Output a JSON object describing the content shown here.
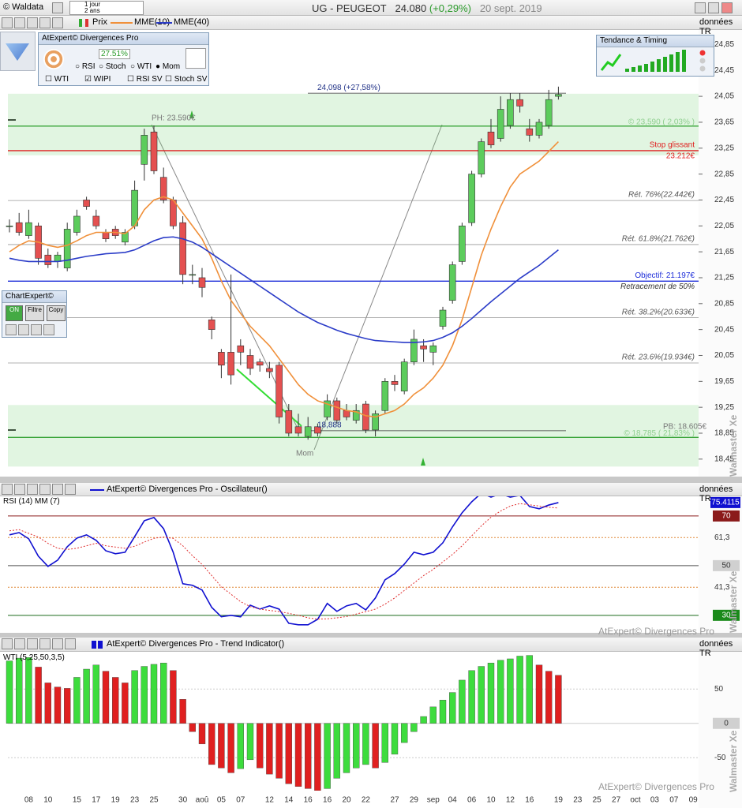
{
  "window": {
    "app": "© Waldata",
    "period": "1 jour",
    "range": "2 ans",
    "symbol": "UG - PEUGEOT",
    "last": "24.080",
    "change": "(+0,29%)",
    "date": "20 sept. 2019"
  },
  "toolbar": {
    "price": "Prix",
    "source": "données TR"
  },
  "divergences_box": {
    "title": "AtExpert© Divergences Pro",
    "score": "27.51%",
    "options": [
      "RSI",
      "Stoch",
      "WTI",
      "Mom"
    ],
    "filters": [
      "WTI",
      "WIPI",
      "RSI SV",
      "Stoch SV"
    ]
  },
  "timing_box": {
    "title": "Tendance & Timing"
  },
  "chartexpert_box": {
    "title": "ChartExpert©",
    "buttons": [
      "ON",
      "Filtre",
      "Copy"
    ]
  },
  "panels": [
    {
      "title": "AtExpert© Divergences Pro - Oscillateur()"
    },
    {
      "title": "AtExpert© Divergences Pro - Trend Indicator()"
    }
  ],
  "watermarks": {
    "vertical": "Walmaster Xe",
    "brand": "AtExpert© Divergences Pro"
  },
  "chart_data": [
    {
      "type": "candlestick",
      "open": [
        22.05,
        22.1,
        21.9,
        22.05,
        21.6,
        21.5,
        21.4,
        21.95,
        22.45,
        22.2,
        21.95,
        22.0,
        21.8,
        22.05,
        23.0,
        23.5,
        22.8,
        22.45,
        22.1,
        21.3,
        21.25,
        20.6,
        20.1,
        20.1,
        20.2,
        20.05,
        19.95,
        19.85,
        19.9,
        19.2,
        18.95,
        18.8,
        18.95,
        19.1,
        19.35,
        19.2,
        19.05,
        19.3,
        18.9,
        19.2,
        19.65,
        19.5,
        19.95,
        20.2,
        20.1,
        20.5,
        20.9,
        21.5,
        22.1,
        22.85,
        23.5,
        23.4,
        23.6,
        24.0,
        23.55,
        23.45,
        23.6,
        24.05,
        null,
        null,
        null,
        null,
        null,
        null,
        null,
        null,
        null,
        null,
        null,
        null,
        null,
        null
      ],
      "high": [
        22.15,
        22.25,
        22.3,
        22.1,
        21.7,
        21.65,
        22.1,
        22.3,
        22.5,
        22.3,
        22.0,
        22.05,
        22.0,
        22.75,
        23.55,
        23.6,
        22.95,
        22.5,
        22.2,
        21.45,
        21.4,
        20.65,
        20.15,
        21.3,
        20.3,
        20.15,
        20.0,
        19.95,
        19.95,
        19.3,
        19.15,
        19.1,
        19.0,
        19.45,
        19.4,
        19.3,
        19.3,
        19.35,
        19.2,
        19.7,
        19.75,
        20.0,
        20.45,
        20.3,
        20.25,
        20.8,
        21.5,
        22.1,
        22.9,
        23.4,
        23.7,
        24.05,
        24.1,
        24.1,
        23.7,
        23.7,
        24.15,
        24.2,
        null,
        null,
        null,
        null,
        null,
        null,
        null,
        null,
        null,
        null,
        null,
        null,
        null,
        null
      ],
      "low": [
        21.95,
        21.9,
        21.85,
        21.45,
        21.4,
        21.4,
        21.35,
        21.9,
        22.3,
        22.0,
        21.8,
        21.85,
        21.75,
        22.0,
        22.75,
        22.85,
        22.4,
        22.0,
        21.15,
        21.15,
        20.95,
        20.3,
        19.7,
        19.6,
        19.9,
        19.75,
        19.8,
        19.7,
        19.0,
        18.8,
        18.8,
        18.75,
        18.8,
        19.05,
        19.0,
        19.05,
        19.0,
        18.85,
        18.8,
        19.15,
        19.5,
        19.45,
        19.9,
        19.95,
        19.9,
        20.45,
        20.85,
        21.45,
        22.05,
        22.8,
        23.25,
        23.35,
        23.55,
        23.8,
        23.35,
        23.4,
        23.55,
        24.0,
        null,
        null,
        null,
        null,
        null,
        null,
        null,
        null,
        null,
        null,
        null,
        null,
        null,
        null
      ],
      "close": [
        22.05,
        21.95,
        22.1,
        21.55,
        21.45,
        21.6,
        22.0,
        22.2,
        22.35,
        22.05,
        21.85,
        21.9,
        21.95,
        22.6,
        23.45,
        22.9,
        22.45,
        22.05,
        21.3,
        21.3,
        21.1,
        20.45,
        19.9,
        19.75,
        20.1,
        19.85,
        19.9,
        19.8,
        19.1,
        18.85,
        18.85,
        18.95,
        18.85,
        19.35,
        19.05,
        19.1,
        19.2,
        18.9,
        19.15,
        19.65,
        19.6,
        19.95,
        20.3,
        20.15,
        20.2,
        20.75,
        21.45,
        22.05,
        22.85,
        23.35,
        23.3,
        23.85,
        24.0,
        23.9,
        23.45,
        23.65,
        24.0,
        24.08,
        null,
        null,
        null,
        null,
        null,
        null,
        null,
        null,
        null,
        null,
        null,
        null,
        null,
        null
      ],
      "up_color": "#5ccc5c",
      "down_color": "#e45050",
      "series": [
        {
          "name": "MME(10)",
          "color": "#f0903a",
          "values": [
            21.65,
            21.75,
            21.82,
            21.8,
            21.75,
            21.72,
            21.75,
            21.82,
            21.9,
            21.95,
            21.95,
            21.95,
            21.93,
            22.05,
            22.3,
            22.45,
            22.5,
            22.45,
            22.25,
            22.05,
            21.85,
            21.55,
            21.2,
            20.9,
            20.7,
            20.5,
            20.35,
            20.2,
            20.0,
            19.8,
            19.6,
            19.45,
            19.35,
            19.3,
            19.25,
            19.2,
            19.18,
            19.12,
            19.1,
            19.15,
            19.2,
            19.3,
            19.45,
            19.55,
            19.7,
            19.9,
            20.2,
            20.6,
            21.1,
            21.6,
            22.0,
            22.35,
            22.65,
            22.85,
            22.95,
            23.05,
            23.2,
            23.35,
            null,
            null,
            null,
            null,
            null,
            null,
            null,
            null,
            null,
            null,
            null,
            null,
            null,
            null
          ]
        },
        {
          "name": "MME(40)",
          "color": "#2b3cc8",
          "values": [
            21.55,
            21.52,
            21.5,
            21.5,
            21.5,
            21.5,
            21.52,
            21.55,
            21.58,
            21.6,
            21.62,
            21.63,
            21.64,
            21.68,
            21.75,
            21.82,
            21.87,
            21.88,
            21.85,
            21.8,
            21.72,
            21.62,
            21.52,
            21.42,
            21.32,
            21.22,
            21.12,
            21.02,
            20.92,
            20.82,
            20.72,
            20.64,
            20.56,
            20.5,
            20.44,
            20.39,
            20.35,
            20.31,
            20.28,
            20.27,
            20.26,
            20.25,
            20.25,
            20.26,
            20.28,
            20.33,
            20.4,
            20.5,
            20.62,
            20.75,
            20.88,
            21.0,
            21.12,
            21.24,
            21.34,
            21.44,
            21.56,
            21.68,
            null,
            null,
            null,
            null,
            null,
            null,
            null,
            null,
            null,
            null,
            null,
            null,
            null,
            null
          ]
        }
      ],
      "ylim": [
        18.18,
        25.05
      ],
      "yticks": [
        {
          "value": 24.85,
          "label": "24,85"
        },
        {
          "value": 24.45,
          "label": "24,45"
        },
        {
          "value": 24.05,
          "label": "24,05"
        },
        {
          "value": 23.65,
          "label": "23,65"
        },
        {
          "value": 23.25,
          "label": "23,25"
        },
        {
          "value": 22.85,
          "label": "22,85"
        },
        {
          "value": 22.45,
          "label": "22,45"
        },
        {
          "value": 22.05,
          "label": "22,05"
        },
        {
          "value": 21.65,
          "label": "21,65"
        },
        {
          "value": 21.25,
          "label": "21,25"
        },
        {
          "value": 20.85,
          "label": "20,85"
        },
        {
          "value": 20.45,
          "label": "20,45"
        },
        {
          "value": 20.05,
          "label": "20,05"
        },
        {
          "value": 19.65,
          "label": "19,65"
        },
        {
          "value": 19.25,
          "label": "19,25"
        },
        {
          "value": 18.85,
          "label": "18,85"
        },
        {
          "value": 18.45,
          "label": "18,45"
        }
      ],
      "levels": [
        {
          "value": 23.59,
          "label": "© 23,590 ( 2,03% )",
          "color": "#3aa53a",
          "band": true
        },
        {
          "value": 23.212,
          "label": "Stop glissant",
          "sublabel": "23.212€",
          "color": "#e02020"
        },
        {
          "value": 22.442,
          "label": "Rét. 76%(22.442€)",
          "color": "#999999"
        },
        {
          "value": 21.762,
          "label": "Rét. 61.8%(21.762€)",
          "color": "#999999"
        },
        {
          "value": 21.197,
          "label": "Objectif: 21.197€",
          "sublabel": "Retracement de 50%",
          "color": "#1a2ad8"
        },
        {
          "value": 20.633,
          "label": "Rét. 38.2%(20.633€)",
          "color": "#999999"
        },
        {
          "value": 19.934,
          "label": "Rét. 23.6%(19.934€)",
          "color": "#999999"
        },
        {
          "value": 18.785,
          "label": "© 18,785 ( 21,83% )",
          "color": "#3aa53a",
          "band": true
        }
      ],
      "markers": [
        {
          "value": 24.098,
          "label": "24,098 (+27,58%)"
        },
        {
          "value": 18.888,
          "label": "18,888"
        }
      ],
      "annotations": [
        "PH: 23.590€",
        "PB: 18.605€",
        "Mom"
      ]
    },
    {
      "type": "line",
      "legend": "RSI (14) MM (7)",
      "series": [
        {
          "color": "#1010d0",
          "values": [
            62.4,
            63.3,
            60.8,
            53.8,
            49.7,
            52.2,
            57.6,
            61.1,
            62.4,
            60.2,
            56.0,
            54.8,
            55.4,
            61.7,
            68.1,
            69.4,
            64.9,
            55.4,
            42.7,
            42.1,
            40.2,
            33.2,
            29.4,
            30,
            29.4,
            34.1,
            32.5,
            33.8,
            32.5,
            26.8,
            26.2,
            26.2,
            28.4,
            34.8,
            31.6,
            33.8,
            34.8,
            32.2,
            37.0,
            44.3,
            46.8,
            50.6,
            55.4,
            54.4,
            55.4,
            59.2,
            65.6,
            71.3,
            75.7,
            79.2,
            77.6,
            78.9,
            77.6,
            78.3,
            73.8,
            72.9,
            74.4,
            75.4,
            null,
            null,
            null,
            null,
            null,
            null,
            null,
            null,
            null,
            null,
            null,
            null,
            null,
            null
          ]
        },
        {
          "color": "#e03030",
          "dash": true,
          "values": [
            64,
            64.5,
            63,
            61.5,
            59,
            57,
            56.5,
            57,
            58,
            59,
            58,
            57.5,
            57,
            57.8,
            59.5,
            61,
            61.5,
            61,
            58,
            54,
            50.5,
            46,
            41.5,
            38.5,
            35.5,
            33.5,
            32.5,
            32,
            31.5,
            30.8,
            30,
            29,
            28.5,
            28.6,
            29,
            29.5,
            30.5,
            31.5,
            32.5,
            34.5,
            37,
            40,
            43,
            46,
            48.5,
            51.5,
            54.5,
            58,
            62,
            66,
            69.5,
            72,
            74,
            75,
            74.5,
            74,
            73.5,
            73.2,
            null,
            null,
            null,
            null,
            null,
            null,
            null,
            null,
            null,
            null,
            null,
            null,
            null,
            null
          ]
        }
      ],
      "ylim": [
        22,
        77.6
      ],
      "yticks": [
        70,
        {
          "value": 61.3,
          "label": "61,3"
        },
        50,
        {
          "value": 41.3,
          "label": "41,3"
        },
        30
      ],
      "tick_colors": [
        "#8b1a1a",
        "#e08a3a",
        "#555555",
        "#e08a3a",
        "#1a6a1a"
      ],
      "tick_boxes": [
        "#8b1a1a",
        null,
        "#d0d0d0",
        null,
        "#1a8a1a"
      ],
      "last_value": 75.4115,
      "last_color": "#1010d0"
    },
    {
      "type": "bar",
      "legend": "WTI (5,25,50,3,5)",
      "categories": [
        null,
        null,
        "08",
        null,
        "10",
        null,
        null,
        "15",
        null,
        "17",
        null,
        "19",
        null,
        "23",
        null,
        "25",
        null,
        null,
        "30",
        null,
        "aoû",
        null,
        "05",
        null,
        "07",
        null,
        null,
        "12",
        null,
        "14",
        null,
        "16",
        null,
        "16",
        null,
        "20",
        null,
        "22",
        null,
        null,
        "27",
        null,
        "29",
        null,
        "sep",
        null,
        "04",
        null,
        "06",
        null,
        "10",
        null,
        "12",
        null,
        "16",
        null,
        null,
        "19",
        null,
        "23",
        null,
        "25",
        null,
        "27",
        null,
        "oct",
        null,
        "03",
        null,
        "07",
        null,
        "09"
      ],
      "values": [
        91,
        95,
        96,
        82,
        59,
        53,
        51,
        67,
        79,
        85,
        76,
        67,
        59,
        77,
        83,
        86,
        88,
        77,
        35,
        -12,
        -30,
        -60,
        -65,
        -72,
        -66,
        -53,
        -65,
        -74,
        -80,
        -88,
        -92,
        -95,
        -98,
        -95,
        -80,
        -72,
        -65,
        -60,
        -65,
        -57,
        -45,
        -28,
        -12,
        10,
        24,
        34,
        45,
        63,
        77,
        83,
        88,
        92,
        94,
        98,
        99,
        85,
        76,
        70,
        null,
        null,
        null,
        null,
        null,
        null,
        null,
        null,
        null,
        null,
        null,
        null,
        null,
        null
      ],
      "up_color": "#3ddc3d",
      "down_color": "#e02020",
      "ylim": [
        -98,
        102
      ],
      "yticks": [
        50,
        0,
        -50
      ],
      "tick_boxes": [
        null,
        "#d0d0d0",
        null
      ]
    }
  ]
}
